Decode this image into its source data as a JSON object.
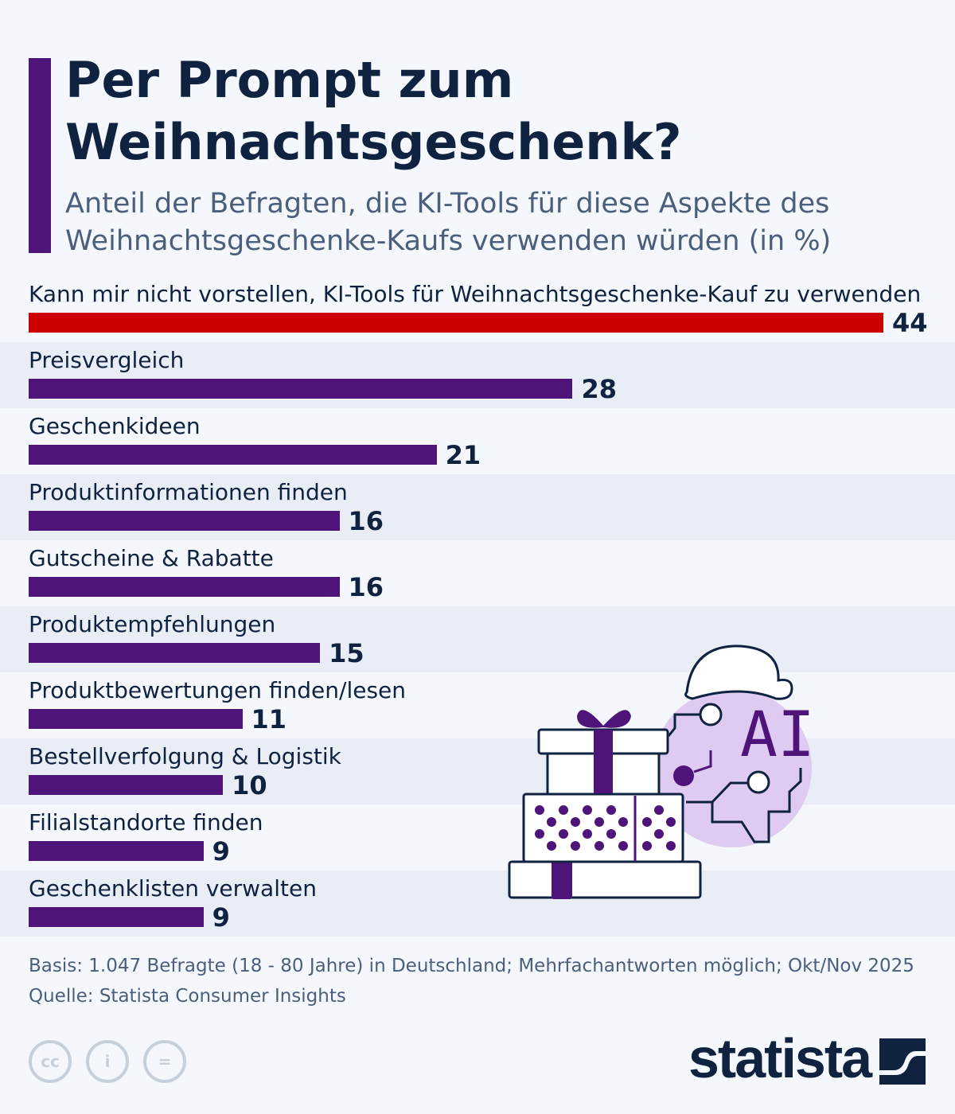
{
  "title": "Per Prompt zum Weihnachtsgeschenk?",
  "subtitle": "Anteil der Befragten, die KI-Tools für diese Aspekte des Weihnachtsgeschenke-Kaufs verwenden würden (in %)",
  "chart_data": {
    "type": "bar",
    "orientation": "horizontal",
    "categories": [
      "Kann mir nicht vorstellen, KI-Tools für Weihnachtsgeschenke-Kauf zu verwenden",
      "Preisvergleich",
      "Geschenkideen",
      "Produktinformationen finden",
      "Gutscheine & Rabatte",
      "Produktempfehlungen",
      "Produktbewertungen finden/lesen",
      "Bestellverfolgung & Logistik",
      "Filialstandorte finden",
      "Geschenklisten verwalten"
    ],
    "values": [
      44,
      28,
      21,
      16,
      16,
      15,
      11,
      10,
      9,
      9
    ],
    "colors": [
      "#cc0000",
      "#4f1479",
      "#4f1479",
      "#4f1479",
      "#4f1479",
      "#4f1479",
      "#4f1479",
      "#4f1479",
      "#4f1479",
      "#4f1479"
    ],
    "xlim": [
      0,
      44
    ],
    "grid": false
  },
  "footer": {
    "basis": "Basis: 1.047 Befragte (18 - 80 Jahre) in Deutschland; Mehrfachantworten möglich; Okt/Nov 2025",
    "source": "Quelle: Statista Consumer Insights",
    "logo": "statista",
    "illustration_text": "AI"
  }
}
